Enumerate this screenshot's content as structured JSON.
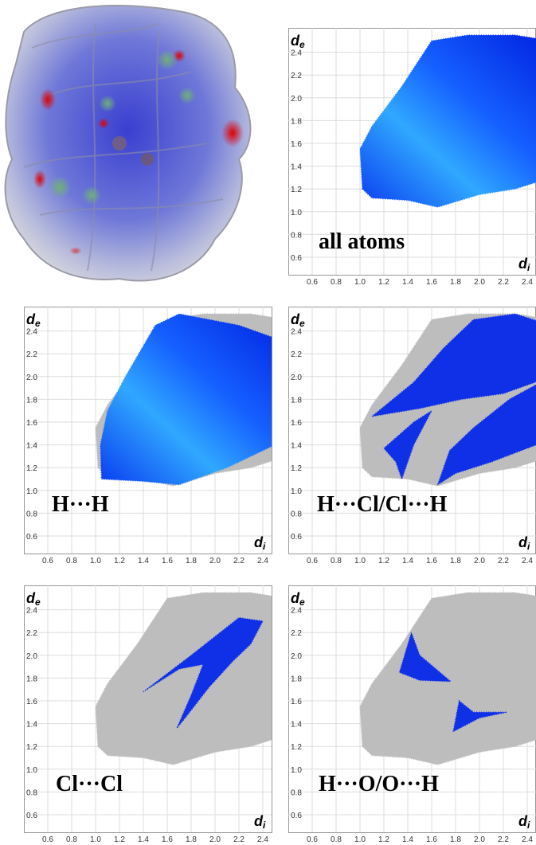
{
  "axis_ticks": [
    "0.6",
    "0.8",
    "1.0",
    "1.2",
    "1.4",
    "1.6",
    "1.8",
    "2.0",
    "2.2",
    "2.4"
  ],
  "y_axis_label": {
    "base": "d",
    "sub": "e"
  },
  "x_axis_label": {
    "base": "d",
    "sub": "i"
  },
  "panels": [
    {
      "caption": "all atoms"
    },
    {
      "caption": "H···H"
    },
    {
      "caption": "H···Cl/Cl···H"
    },
    {
      "caption": "Cl···Cl"
    },
    {
      "caption": "H···O/O···H"
    }
  ]
}
